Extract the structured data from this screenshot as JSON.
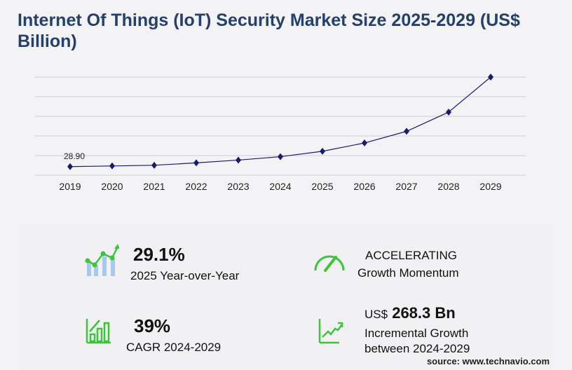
{
  "title": "Internet Of Things (IoT) Security Market Size 2025-2029 (US$ Billion)",
  "chart_data": {
    "type": "line",
    "categories": [
      "2019",
      "2020",
      "2021",
      "2022",
      "2023",
      "2024",
      "2025",
      "2026",
      "2027",
      "2028",
      "2029"
    ],
    "values": [
      28.9,
      31.2,
      33.5,
      41.6,
      50.9,
      62.4,
      80.6,
      108.6,
      147.9,
      212.6,
      330.7
    ],
    "data_labels": {
      "0": "28.90"
    },
    "ylim": [
      0,
      330.7
    ],
    "grid": true,
    "line_color": "#1a1a6e"
  },
  "stats": {
    "yoy_value": "29.1%",
    "yoy_label": "2025 Year-over-Year",
    "momentum_value": "ACCELERATING",
    "momentum_label": "Growth Momentum",
    "cagr_value": "39%",
    "cagr_label": "CAGR 2024-2029",
    "incr_prefix": "US$",
    "incr_value": "268.3 Bn",
    "incr_label1": "Incremental Growth",
    "incr_label2": "between 2024-2029"
  },
  "source": "source: www.technavio.com",
  "colors": {
    "accent": "#2ecc40",
    "title": "#24406b"
  }
}
